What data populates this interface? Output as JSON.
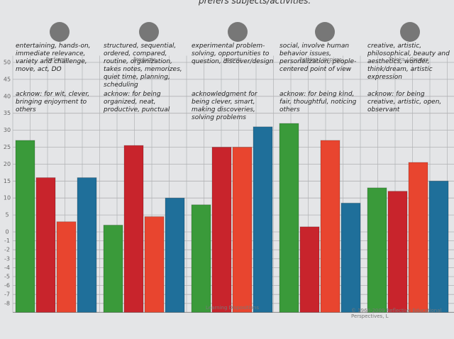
{
  "title": "prefers subjects/activities.",
  "footer": "Learning Dispositions",
  "copyright": "© 1968-2009 Reflective Educational Perspectives, L",
  "chart_data": {
    "type": "bar",
    "categories": [
      "Performs",
      "Produces",
      "Invents",
      "Relates / Inspires",
      "Thinks / Creates"
    ],
    "annotations": [
      [
        "entertaining, hands-on, immediate relevance, variety and challenge, move, act, DO",
        "acknow: for wit, clever, bringing enjoyment to others"
      ],
      [
        "structured, sequential, ordered, compared, routine, organization, takes notes, memorizes, quiet time, planning, scheduling",
        "acknow: for being organized, neat, productive, punctual"
      ],
      [
        "experimental problem-solving, opportunities to question, discover/design",
        "acknowledgment for being clever, smart, making discoveries, solving problems"
      ],
      [
        "social, involve human behavior issues, personalization, people-centered point of view",
        "acknow: for being kind, fair, thoughtful, noticing others"
      ],
      [
        "creative, artistic, philosophical, beauty and aesthetics, wonder, think/dream, artistic expression",
        "acknow: for being creative, artistic, open, observant"
      ]
    ],
    "series": [
      {
        "color": "#3a9a3a",
        "values": [
          27,
          2,
          8,
          32,
          13
        ]
      },
      {
        "color": "#c8242c",
        "values": [
          16,
          25.5,
          25,
          1.5,
          12
        ]
      },
      {
        "color": "#e8452f",
        "values": [
          3,
          4.5,
          25,
          27,
          20.5
        ]
      },
      {
        "color": "#1f6f9a",
        "values": [
          16,
          10,
          31,
          8.5,
          15
        ]
      }
    ],
    "ylim": [
      -9,
      52
    ],
    "yticks": [
      50,
      45,
      40,
      35,
      30,
      25,
      20,
      15,
      10,
      5,
      0,
      -1,
      -2,
      -3,
      -4,
      -5,
      -6,
      -7,
      -8
    ],
    "grid": true
  }
}
